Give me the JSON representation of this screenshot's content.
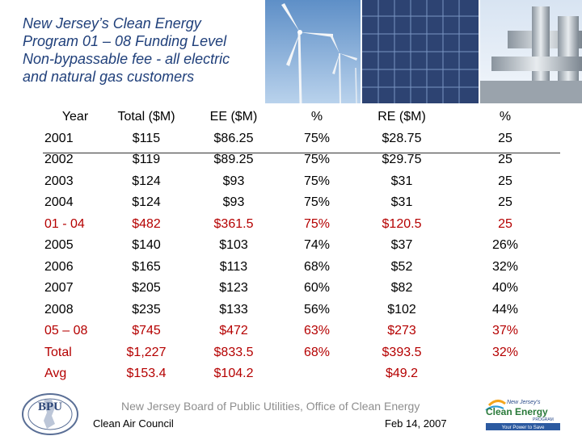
{
  "title": {
    "lines": [
      "New Jersey’s Clean Energy",
      "Program 01 – 08 Funding Level",
      "Non-bypassable fee - all electric",
      "and natural gas customers"
    ]
  },
  "table": {
    "headers": [
      "Year",
      "Total ($M)",
      "EE ($M)",
      "%",
      "RE ($M)",
      "%"
    ],
    "rows": [
      {
        "year": "2001",
        "total": "$115",
        "ee": "$86.25",
        "ee_pct": "75%",
        "re": "$28.75",
        "re_pct": "25",
        "highlight": false
      },
      {
        "year": "2002",
        "total": "$119",
        "ee": "$89.25",
        "ee_pct": "75%",
        "re": "$29.75",
        "re_pct": "25",
        "highlight": false
      },
      {
        "year": "2003",
        "total": "$124",
        "ee": "$93",
        "ee_pct": "75%",
        "re": "$31",
        "re_pct": "25",
        "highlight": false
      },
      {
        "year": "2004",
        "total": "$124",
        "ee": "$93",
        "ee_pct": "75%",
        "re": "$31",
        "re_pct": "25",
        "highlight": false
      },
      {
        "year": "01 - 04",
        "total": "$482",
        "ee": "$361.5",
        "ee_pct": "75%",
        "re": "$120.5",
        "re_pct": "25",
        "highlight": true
      },
      {
        "year": "2005",
        "total": "$140",
        "ee": "$103",
        "ee_pct": "74%",
        "re": "$37",
        "re_pct": "26%",
        "highlight": false
      },
      {
        "year": "2006",
        "total": "$165",
        "ee": "$113",
        "ee_pct": "68%",
        "re": "$52",
        "re_pct": "32%",
        "highlight": false
      },
      {
        "year": "2007",
        "total": "$205",
        "ee": "$123",
        "ee_pct": "60%",
        "re": "$82",
        "re_pct": "40%",
        "highlight": false
      },
      {
        "year": "2008",
        "total": "$235",
        "ee": "$133",
        "ee_pct": "56%",
        "re": "$102",
        "re_pct": "44%",
        "highlight": false
      },
      {
        "year": "05 – 08",
        "total": "$745",
        "ee": "$472",
        "ee_pct": "63%",
        "re": "$273",
        "re_pct": "37%",
        "highlight": true
      },
      {
        "year": "Total",
        "total": "$1,227",
        "ee": "$833.5",
        "ee_pct": "68%",
        "re": "$393.5",
        "re_pct": "32%",
        "highlight": true
      },
      {
        "year": "Avg",
        "total": "$153.4",
        "ee": "$104.2",
        "ee_pct": "",
        "re": "$49.2",
        "re_pct": "",
        "highlight": true
      }
    ]
  },
  "footer": {
    "org": "New Jersey Board of Public Utilities, Office of Clean Energy",
    "council": "Clean Air Council",
    "date": "Feb 14, 2007"
  },
  "logos": {
    "bpu": {
      "text": "BPU"
    },
    "clean_energy": {
      "line1": "New Jersey’s",
      "line2": "Clean Energy",
      "line3": "PROGRAM",
      "tagline": "Your Power to Save"
    }
  }
}
